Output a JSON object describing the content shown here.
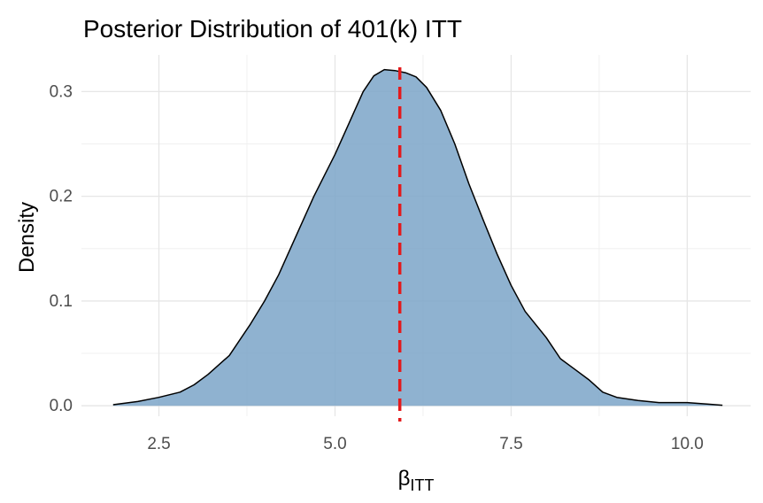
{
  "chart_data": {
    "type": "area",
    "title": "Posterior Distribution of 401(k) ITT",
    "xlabel": "β",
    "xlabel_subscript": "ITT",
    "ylabel": "Density",
    "xlim": [
      1.4,
      10.9
    ],
    "ylim": [
      -0.01,
      0.335
    ],
    "x_ticks": [
      2.5,
      5.0,
      7.5,
      10.0
    ],
    "x_tick_labels": [
      "2.5",
      "5.0",
      "7.5",
      "10.0"
    ],
    "y_ticks": [
      0.0,
      0.1,
      0.2,
      0.3
    ],
    "y_tick_labels": [
      "0.0",
      "0.1",
      "0.2",
      "0.3"
    ],
    "grid": true,
    "fill_color": "#7BA4C8",
    "line_color": "#000000",
    "reference_line": {
      "x": 5.92,
      "color": "#E41A1C",
      "style": "dashed"
    },
    "series": [
      {
        "x": [
          1.85,
          2.2,
          2.5,
          2.8,
          3.0,
          3.2,
          3.5,
          3.8,
          4.0,
          4.2,
          4.5,
          4.7,
          5.0,
          5.2,
          5.4,
          5.55,
          5.7,
          5.85,
          6.0,
          6.15,
          6.3,
          6.5,
          6.7,
          6.9,
          7.1,
          7.3,
          7.5,
          7.7,
          8.0,
          8.2,
          8.4,
          8.6,
          8.8,
          9.0,
          9.3,
          9.6,
          10.0,
          10.3,
          10.5
        ],
        "y": [
          0.001,
          0.004,
          0.008,
          0.013,
          0.02,
          0.03,
          0.048,
          0.078,
          0.1,
          0.125,
          0.17,
          0.2,
          0.24,
          0.27,
          0.3,
          0.315,
          0.321,
          0.32,
          0.318,
          0.314,
          0.304,
          0.282,
          0.25,
          0.212,
          0.178,
          0.145,
          0.115,
          0.09,
          0.065,
          0.045,
          0.035,
          0.025,
          0.013,
          0.008,
          0.005,
          0.003,
          0.003,
          0.0015,
          0.0005
        ]
      }
    ]
  }
}
